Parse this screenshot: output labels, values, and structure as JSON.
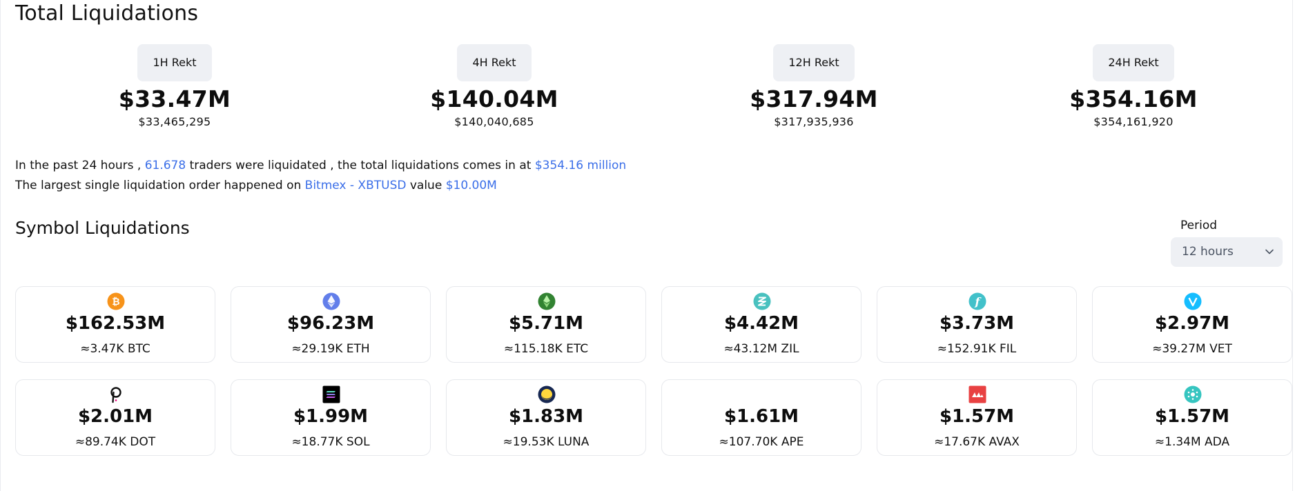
{
  "total_liquidations": {
    "title": "Total Liquidations",
    "periods": [
      {
        "label": "1H Rekt",
        "amount": "$33.47M",
        "exact": "$33,465,295"
      },
      {
        "label": "4H Rekt",
        "amount": "$140.04M",
        "exact": "$140,040,685"
      },
      {
        "label": "12H Rekt",
        "amount": "$317.94M",
        "exact": "$317,935,936"
      },
      {
        "label": "24H Rekt",
        "amount": "$354.16M",
        "exact": "$354,161,920"
      }
    ]
  },
  "summary": {
    "line1": {
      "prefix": "In the past 24 hours ,",
      "traders": "61.678",
      "middle": "traders were liquidated , the total liquidations comes in at",
      "total": "$354.16 million"
    },
    "line2": {
      "prefix": "The largest single liquidation order happened on",
      "exchange": "Bitmex - XBTUSD",
      "middle": "value",
      "value": "$10.00M"
    }
  },
  "symbol_liquidations": {
    "title": "Symbol Liquidations",
    "period_label": "Period",
    "period_value": "12 hours",
    "cards": [
      {
        "icon": "bitcoin-icon",
        "color": "#f7931a",
        "usd": "$162.53M",
        "amount": "≈3.47K BTC"
      },
      {
        "icon": "ethereum-icon",
        "color": "#627eea",
        "usd": "$96.23M",
        "amount": "≈29.19K ETH"
      },
      {
        "icon": "ethereum-classic-icon",
        "color": "#328332",
        "usd": "$5.71M",
        "amount": "≈115.18K ETC"
      },
      {
        "icon": "zilliqa-icon",
        "color": "#49c1bf",
        "usd": "$4.42M",
        "amount": "≈43.12M ZIL"
      },
      {
        "icon": "filecoin-icon",
        "color": "#42c1ca",
        "usd": "$3.73M",
        "amount": "≈152.91K FIL"
      },
      {
        "icon": "vechain-icon",
        "color": "#15bdff",
        "usd": "$2.97M",
        "amount": "≈39.27M VET"
      },
      {
        "icon": "polkadot-icon",
        "color": "#111111",
        "usd": "$2.01M",
        "amount": "≈89.74K DOT"
      },
      {
        "icon": "solana-icon",
        "color": "#000000",
        "usd": "$1.99M",
        "amount": "≈18.77K SOL"
      },
      {
        "icon": "terra-luna-icon",
        "color": "#172852",
        "usd": "$1.83M",
        "amount": "≈19.53K LUNA"
      },
      {
        "icon": "apecoin-icon",
        "color": "#0054f9",
        "usd": "$1.61M",
        "amount": "≈107.70K APE"
      },
      {
        "icon": "avalanche-icon",
        "color": "#e84142",
        "usd": "$1.57M",
        "amount": "≈17.67K AVAX"
      },
      {
        "icon": "cardano-icon",
        "color": "#36c5c0",
        "usd": "$1.57M",
        "amount": "≈1.34M ADA"
      }
    ]
  },
  "colors": {
    "accent": "#3a6ee8",
    "pill_bg": "#eef0f4",
    "card_border": "#e6e8ec"
  }
}
